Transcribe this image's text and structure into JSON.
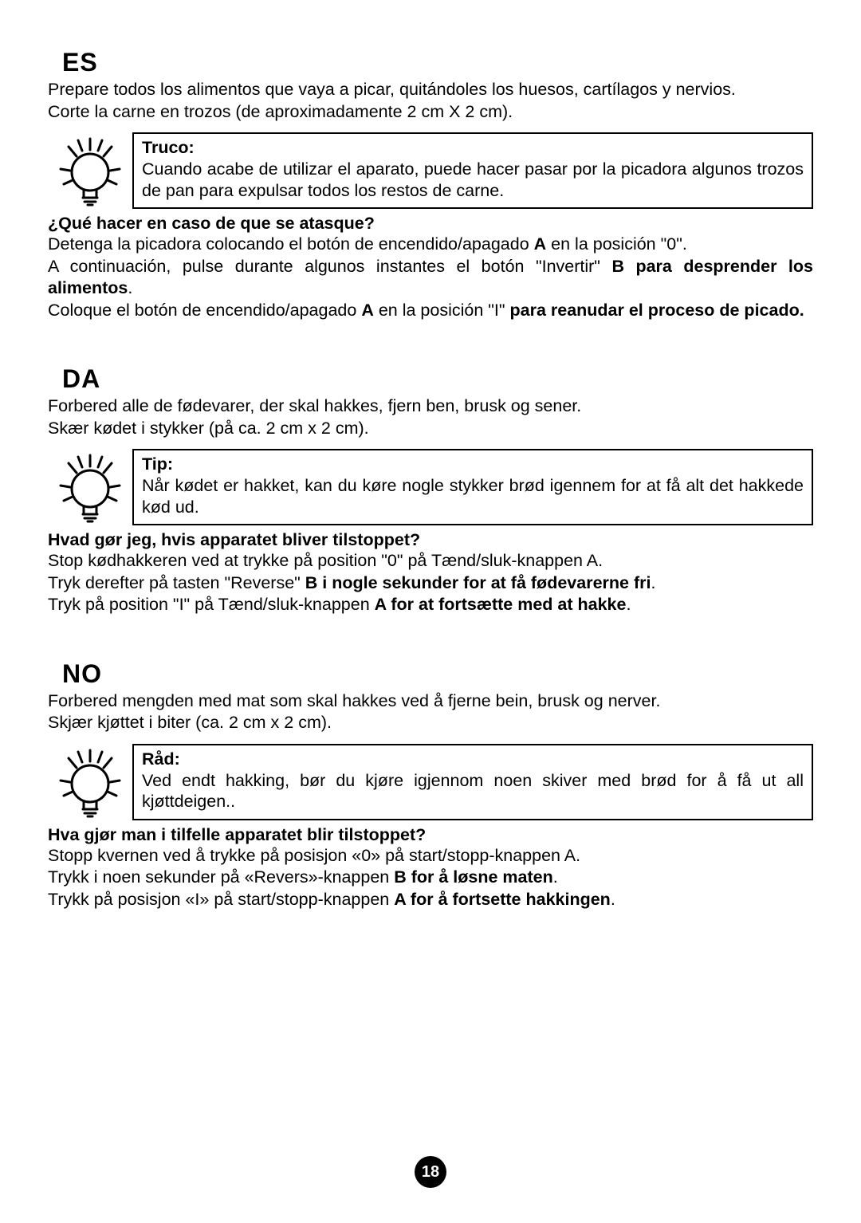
{
  "page_number": "18",
  "sections": [
    {
      "code": "ES",
      "intro_lines": [
        "Prepare todos los alimentos que vaya a picar, quitándoles los huesos, cartílagos y nervios.",
        "Corte la carne en trozos (de aproximadamente 2 cm X 2 cm)."
      ],
      "tip_title": "Truco:",
      "tip_body": "Cuando acabe de utilizar el aparato, puede hacer pasar por la picadora algunos trozos de pan para expulsar todos los restos de carne.",
      "question": "¿Qué hacer en caso de que se atasque?",
      "steps_html": "Detenga la picadora colocando el botón de encendido/apagado <span class='b'>A</span> en la posición \"0\".<br>A continuación, pulse durante algunos instantes el botón \"Invertir\" <span class='b'>B para desprender los alimentos</span>.<br>Coloque el botón de encendido/apagado <span class='b'>A</span> en la posición \"I\" <span class='b'>para reanudar el proceso de picado.</span>"
    },
    {
      "code": "DA",
      "intro_lines": [
        "Forbered alle de fødevarer, der skal hakkes, fjern ben, brusk og sener.",
        "Skær kødet i stykker (på ca. 2 cm x 2 cm)."
      ],
      "tip_title": "Tip:",
      "tip_body": "Når kødet er hakket, kan du køre nogle stykker brød igennem for at få alt det hakkede kød ud.",
      "question": "Hvad gør jeg, hvis apparatet bliver tilstoppet?",
      "steps_html": "Stop kødhakkeren ved at trykke på position \"0\" på Tænd/sluk-knappen A.<br>Tryk derefter på tasten \"Reverse\" <span class='b'>B i nogle sekunder for at få fødevarerne fri</span>.<br>Tryk på position \"I\" på Tænd/sluk-knappen <span class='b'>A for at fortsætte med at hakke</span>."
    },
    {
      "code": "NO",
      "intro_lines": [
        "Forbered mengden med mat som skal hakkes ved å fjerne bein, brusk og nerver.",
        "Skjær kjøttet i biter (ca. 2 cm x 2 cm)."
      ],
      "tip_title": "Råd:",
      "tip_body": "Ved endt hakking, bør du kjøre igjennom noen skiver med brød for å få ut all kjøttdeigen..",
      "question": "Hva gjør man i tilfelle apparatet blir tilstoppet?",
      "steps_html": "Stopp kvernen ved å trykke på posisjon «0» på start/stopp-knappen A.<br>Trykk i noen sekunder på «Revers»-knappen <span class='b'>B for å løsne maten</span>.<br>Trykk på posisjon «I» på start/stopp-knappen <span class='b'>A for å fortsette hakkingen</span>."
    }
  ],
  "icon": {
    "name": "lightbulb-idea-icon",
    "stroke": "#000000",
    "stroke_width": 3
  }
}
